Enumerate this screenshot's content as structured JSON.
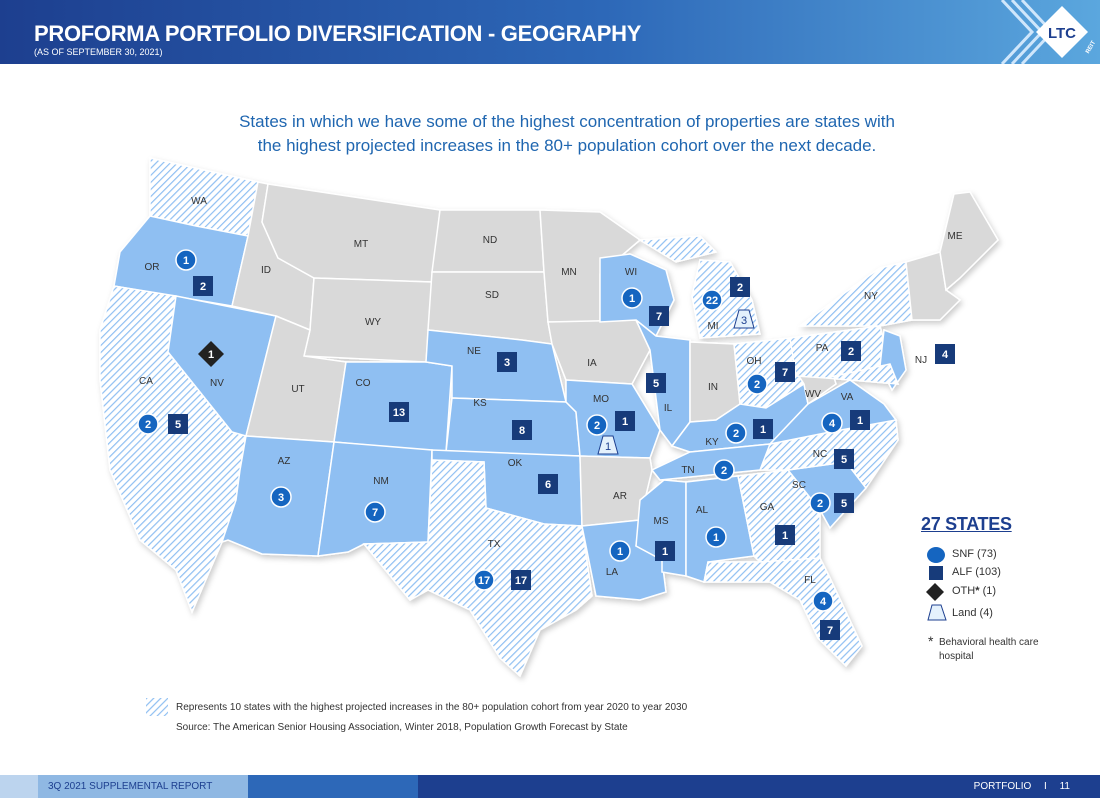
{
  "header": {
    "title": "PROFORMA PORTFOLIO DIVERSIFICATION - GEOGRAPHY",
    "subtitle": "(AS OF SEPTEMBER 30, 2021)",
    "logo_text": "LTC",
    "logo_sub": "REIT"
  },
  "intro": "States in which we have some of the highest concentration of properties are states with the highest projected increases in the 80+ population cohort over the next decade.",
  "colors": {
    "snf": "#1565c0",
    "alf": "#173b7a",
    "portfolio_state": "#8fbff2",
    "other_state": "#d9d9d9",
    "hatch": "#8fbff2",
    "header": "#1d3f8f"
  },
  "map": {
    "state_labels": [
      "WA",
      "OR",
      "CA",
      "NV",
      "ID",
      "MT",
      "WY",
      "UT",
      "AZ",
      "CO",
      "NM",
      "ND",
      "SD",
      "NE",
      "KS",
      "OK",
      "TX",
      "MN",
      "IA",
      "MO",
      "AR",
      "LA",
      "WI",
      "IL",
      "MI",
      "IN",
      "OH",
      "KY",
      "TN",
      "MS",
      "AL",
      "GA",
      "FL",
      "SC",
      "NC",
      "VA",
      "WV",
      "PA",
      "NY",
      "NJ",
      "ME"
    ],
    "markers": [
      {
        "state": "OR",
        "type": "snf",
        "value": "1"
      },
      {
        "state": "OR",
        "type": "alf",
        "value": "2"
      },
      {
        "state": "NV",
        "type": "oth",
        "value": "1"
      },
      {
        "state": "CA",
        "type": "snf",
        "value": "2"
      },
      {
        "state": "CA",
        "type": "alf",
        "value": "5"
      },
      {
        "state": "CO",
        "type": "alf",
        "value": "13"
      },
      {
        "state": "AZ",
        "type": "snf",
        "value": "3"
      },
      {
        "state": "NM",
        "type": "snf",
        "value": "7"
      },
      {
        "state": "NE",
        "type": "alf",
        "value": "3"
      },
      {
        "state": "KS",
        "type": "alf",
        "value": "8"
      },
      {
        "state": "OK",
        "type": "alf",
        "value": "6"
      },
      {
        "state": "TX",
        "type": "snf",
        "value": "17"
      },
      {
        "state": "TX",
        "type": "alf",
        "value": "17"
      },
      {
        "state": "WI",
        "type": "snf",
        "value": "1"
      },
      {
        "state": "WI",
        "type": "alf",
        "value": "7"
      },
      {
        "state": "MI",
        "type": "snf",
        "value": "22"
      },
      {
        "state": "MI",
        "type": "alf",
        "value": "2"
      },
      {
        "state": "MI",
        "type": "land",
        "value": "3"
      },
      {
        "state": "IL",
        "type": "alf",
        "value": "5"
      },
      {
        "state": "MO",
        "type": "snf",
        "value": "2"
      },
      {
        "state": "MO",
        "type": "alf",
        "value": "1"
      },
      {
        "state": "AR",
        "type": "land",
        "value": "1"
      },
      {
        "state": "OH",
        "type": "snf",
        "value": "2"
      },
      {
        "state": "OH",
        "type": "alf",
        "value": "7"
      },
      {
        "state": "PA",
        "type": "alf",
        "value": "2"
      },
      {
        "state": "NJ",
        "type": "alf",
        "value": "4"
      },
      {
        "state": "KY",
        "type": "snf",
        "value": "2"
      },
      {
        "state": "KY",
        "type": "alf",
        "value": "1"
      },
      {
        "state": "VA",
        "type": "snf",
        "value": "4"
      },
      {
        "state": "VA",
        "type": "alf",
        "value": "1"
      },
      {
        "state": "NC",
        "type": "alf",
        "value": "5"
      },
      {
        "state": "TN",
        "type": "snf",
        "value": "2"
      },
      {
        "state": "SC",
        "type": "snf",
        "value": "2"
      },
      {
        "state": "SC",
        "type": "alf",
        "value": "5"
      },
      {
        "state": "LA",
        "type": "snf",
        "value": "1"
      },
      {
        "state": "MS",
        "type": "alf",
        "value": "1"
      },
      {
        "state": "AL",
        "type": "snf",
        "value": "1"
      },
      {
        "state": "GA",
        "type": "alf",
        "value": "1"
      },
      {
        "state": "FL",
        "type": "snf",
        "value": "4"
      },
      {
        "state": "FL",
        "type": "alf",
        "value": "7"
      }
    ]
  },
  "legend": {
    "title": "27 STATES",
    "snf": "SNF (73)",
    "alf": "ALF (103)",
    "oth": "OTH",
    "oth_count": "(1)",
    "land": "Land (4)",
    "note_star": "*",
    "note": "Behavioral health care hospital"
  },
  "footnotes": {
    "hatch_note": "Represents 10 states with the highest projected increases in the 80+ population cohort from year 2020 to year 2030",
    "source": "Source:  The American Senior Housing Association, Winter 2018, Population Growth Forecast by State"
  },
  "footer": {
    "left": "3Q 2021 SUPPLEMENTAL REPORT",
    "section": "PORTFOLIO",
    "divider": "I",
    "page": "11"
  }
}
